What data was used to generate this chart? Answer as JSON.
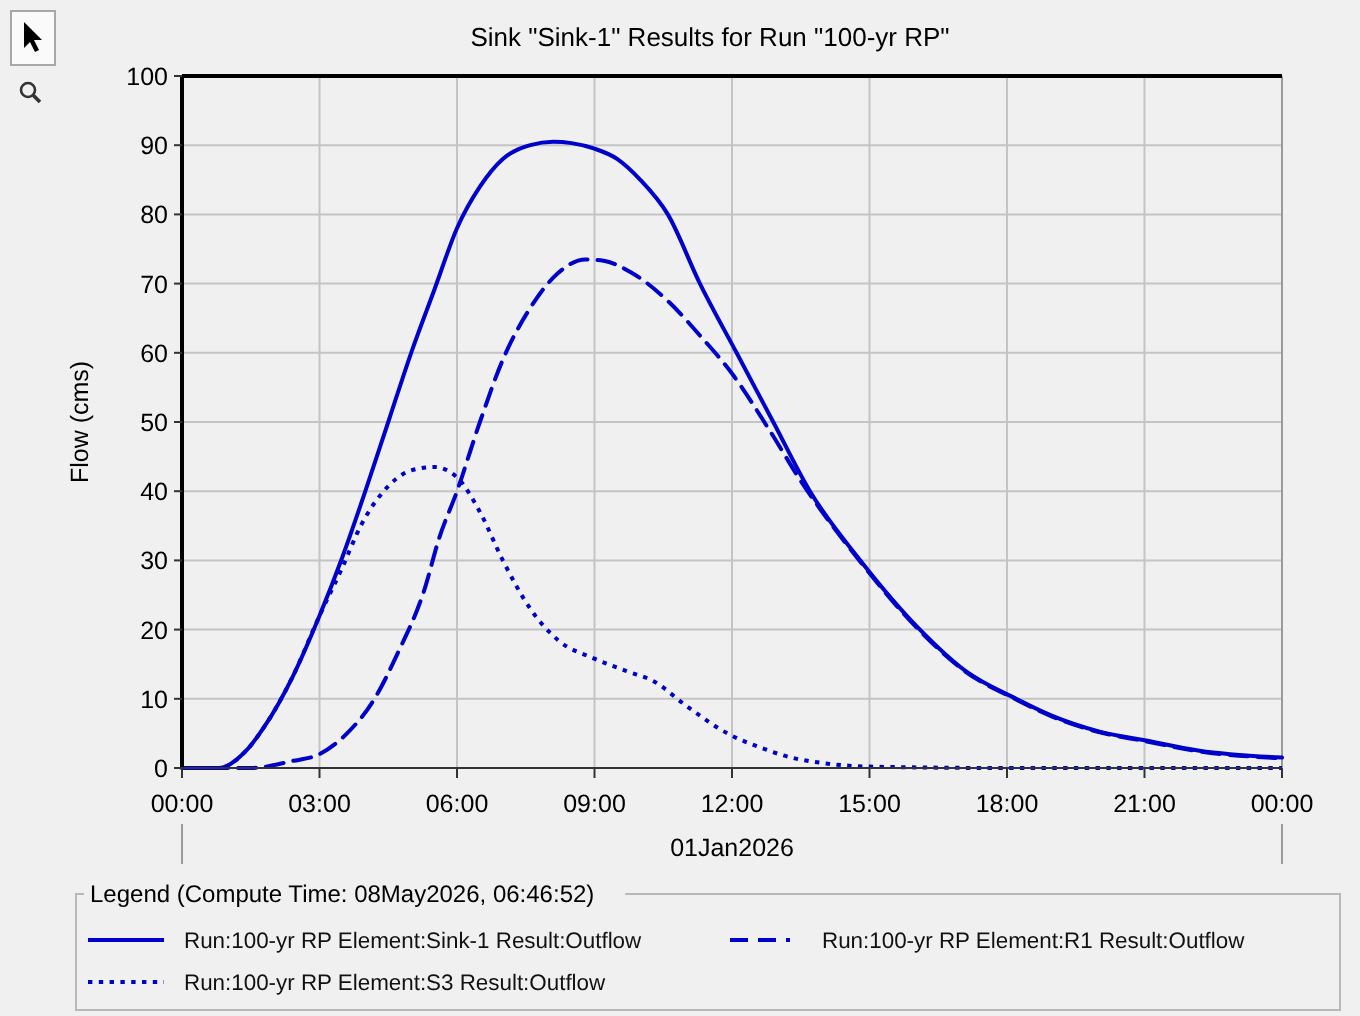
{
  "chart_data": {
    "type": "line",
    "title": "Sink \"Sink-1\" Results for Run \"100-yr RP\"",
    "xlabel": "01Jan2026",
    "ylabel": "Flow (cms)",
    "legend_title": "Legend (Compute Time: 08May2026, 06:46:52)",
    "xlim": [
      0,
      24
    ],
    "xticks": [
      {
        "value": 0,
        "label": "00:00"
      },
      {
        "value": 3,
        "label": "03:00"
      },
      {
        "value": 6,
        "label": "06:00"
      },
      {
        "value": 9,
        "label": "09:00"
      },
      {
        "value": 12,
        "label": "12:00"
      },
      {
        "value": 15,
        "label": "15:00"
      },
      {
        "value": 18,
        "label": "18:00"
      },
      {
        "value": 21,
        "label": "21:00"
      },
      {
        "value": 24,
        "label": "00:00"
      }
    ],
    "ylim": [
      0,
      100
    ],
    "yticks": [
      0,
      10,
      20,
      30,
      40,
      50,
      60,
      70,
      80,
      90,
      100
    ],
    "grid": true,
    "legend": "bottom",
    "series": [
      {
        "name": "Run:100-yr RP Element:Sink-1 Result:Outflow",
        "color": "#0000cc",
        "line_style": "solid",
        "x": [
          0,
          0.8,
          1.4,
          1.8,
          2.4,
          3,
          3.5,
          4,
          4.5,
          5,
          5.5,
          6,
          6.5,
          7,
          7.6,
          8.1,
          8.5,
          9,
          9.5,
          10,
          10.6,
          11.3,
          12.1,
          12.9,
          13.7,
          14.8,
          16.1,
          17.1,
          18.2,
          19,
          20,
          21,
          22.2,
          24
        ],
        "values": [
          0,
          0,
          2.5,
          6,
          13,
          22,
          30.5,
          40,
          50,
          60,
          69,
          78,
          84,
          88,
          90,
          90.5,
          90.3,
          89.5,
          88,
          85,
          80,
          70,
          60,
          50,
          40,
          30,
          20,
          14,
          10,
          7.5,
          5.3,
          4,
          2.5,
          1.5
        ]
      },
      {
        "name": "Run:100-yr RP Element:R1 Result:Outflow",
        "color": "#0000cc",
        "line_style": "dashed",
        "x": [
          0,
          1.5,
          2.4,
          3,
          3.6,
          4.2,
          4.7,
          5.3,
          5.6,
          6,
          6.5,
          7,
          7.6,
          8.2,
          8.8,
          9.2,
          9.8,
          10.6,
          11.3,
          12,
          12.8,
          13.5,
          14.8,
          16.1,
          17.1,
          18.2,
          19,
          20,
          21,
          22.2,
          24
        ],
        "values": [
          0,
          0,
          1,
          2,
          5,
          10,
          16.5,
          26,
          33,
          40,
          50,
          59,
          66.5,
          71.5,
          73.5,
          73.3,
          71.6,
          67.5,
          62.5,
          57,
          49,
          41.5,
          29.8,
          19.8,
          13.9,
          9.9,
          7.4,
          5.2,
          3.9,
          2.4,
          1.4
        ]
      },
      {
        "name": "Run:100-yr RP Element:S3 Result:Outflow",
        "color": "#0000cc",
        "line_style": "dotted",
        "x": [
          0,
          0.8,
          1.4,
          1.8,
          2.4,
          3,
          3.5,
          3.9,
          4.4,
          5,
          5.5,
          6,
          6.5,
          7,
          7.6,
          8.2,
          9,
          9.7,
          10.3,
          11,
          11.9,
          12.6,
          13.3,
          14,
          15,
          18,
          24
        ],
        "values": [
          0,
          0,
          2.5,
          6,
          13,
          22,
          29,
          35,
          40,
          43,
          43.5,
          42,
          37,
          30,
          23,
          18.5,
          15.8,
          14,
          12.5,
          9,
          5,
          3,
          1.5,
          0.7,
          0.2,
          0,
          0
        ]
      }
    ]
  }
}
